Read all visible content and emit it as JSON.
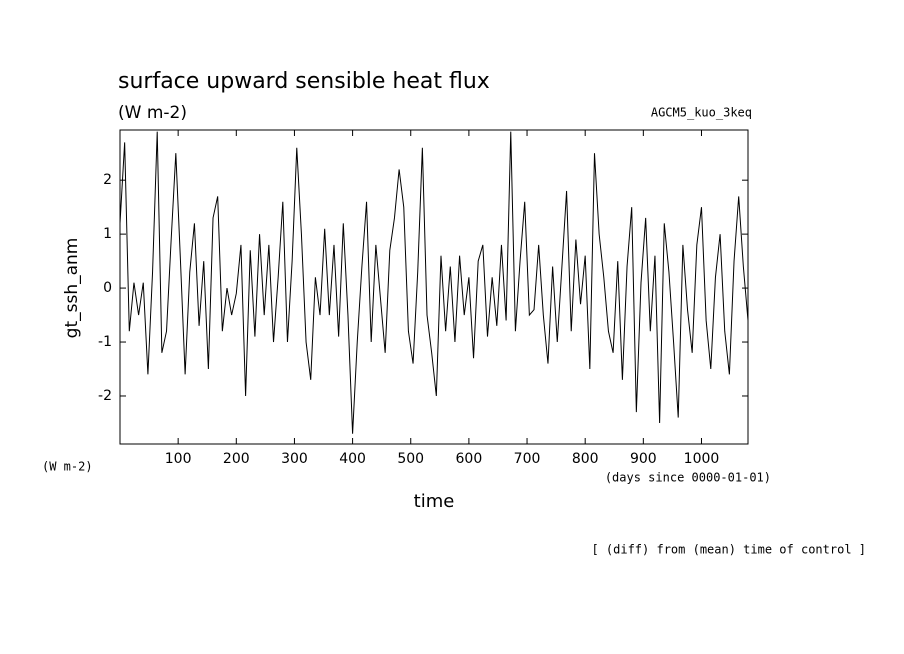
{
  "chart_data": {
    "type": "line",
    "title": "surface upward sensible heat flux",
    "subtitle": "(W m-2)",
    "run_label": "AGCM5_kuo_3keq",
    "ylabel": "gt_ssh_anm",
    "yunit": "(W m-2)",
    "xunit": "(days since 0000-01-01)",
    "xlabel": "time",
    "footnote": "[ (diff) from (mean) time of control ]",
    "xlim": [
      0,
      1080
    ],
    "ylim": [
      -2.89,
      2.93
    ],
    "xticks": [
      100,
      200,
      300,
      400,
      500,
      600,
      700,
      800,
      900,
      1000
    ],
    "yticks": [
      -2,
      -1,
      0,
      1,
      2
    ],
    "series": [
      {
        "name": "gt_ssh_anm",
        "color": "#000000",
        "x": [
          0,
          8,
          16,
          24,
          32,
          40,
          48,
          56,
          64,
          72,
          80,
          88,
          96,
          104,
          112,
          120,
          128,
          136,
          144,
          152,
          160,
          168,
          176,
          184,
          192,
          200,
          208,
          216,
          224,
          232,
          240,
          248,
          256,
          264,
          272,
          280,
          288,
          296,
          304,
          312,
          320,
          328,
          336,
          344,
          352,
          360,
          368,
          376,
          384,
          392,
          400,
          408,
          416,
          424,
          432,
          440,
          448,
          456,
          464,
          472,
          480,
          488,
          496,
          504,
          512,
          520,
          528,
          536,
          544,
          552,
          560,
          568,
          576,
          584,
          592,
          600,
          608,
          616,
          624,
          632,
          640,
          648,
          656,
          664,
          672,
          680,
          688,
          696,
          704,
          712,
          720,
          728,
          736,
          744,
          752,
          760,
          768,
          776,
          784,
          792,
          800,
          808,
          816,
          824,
          832,
          840,
          848,
          856,
          864,
          872,
          880,
          888,
          896,
          904,
          912,
          920,
          928,
          936,
          944,
          952,
          960,
          968,
          976,
          984,
          992,
          1000,
          1008,
          1016,
          1024,
          1032,
          1040,
          1048,
          1056,
          1064,
          1072,
          1080
        ],
        "values": [
          1.2,
          2.7,
          -0.8,
          0.1,
          -0.5,
          0.1,
          -1.6,
          0.3,
          2.9,
          -1.2,
          -0.8,
          0.9,
          2.5,
          0.5,
          -1.6,
          0.3,
          1.2,
          -0.7,
          0.5,
          -1.5,
          1.3,
          1.7,
          -0.8,
          0.0,
          -0.5,
          -0.1,
          0.8,
          -2.0,
          0.7,
          -0.9,
          1.0,
          -0.5,
          0.8,
          -1.0,
          0.2,
          1.6,
          -1.0,
          0.5,
          2.6,
          1.0,
          -1.0,
          -1.7,
          0.2,
          -0.5,
          1.1,
          -0.5,
          0.8,
          -0.9,
          1.2,
          -0.5,
          -2.7,
          -1.0,
          0.4,
          1.6,
          -1.0,
          0.8,
          -0.2,
          -1.2,
          0.7,
          1.3,
          2.2,
          1.5,
          -0.8,
          -1.4,
          0.3,
          2.6,
          -0.5,
          -1.2,
          -2.0,
          0.6,
          -0.8,
          0.4,
          -1.0,
          0.6,
          -0.5,
          0.2,
          -1.3,
          0.5,
          0.8,
          -0.9,
          0.2,
          -0.7,
          0.8,
          -0.6,
          2.9,
          -0.8,
          0.5,
          1.6,
          -0.5,
          -0.4,
          0.8,
          -0.5,
          -1.4,
          0.4,
          -1.0,
          0.4,
          1.8,
          -0.8,
          0.9,
          -0.3,
          0.6,
          -1.5,
          2.5,
          1.0,
          0.2,
          -0.8,
          -1.2,
          0.5,
          -1.7,
          0.4,
          1.5,
          -2.3,
          0.1,
          1.3,
          -0.8,
          0.6,
          -2.5,
          1.2,
          0.3,
          -1.0,
          -2.4,
          0.8,
          -0.4,
          -1.2,
          0.8,
          1.5,
          -0.6,
          -1.5,
          0.2,
          1.0,
          -0.8,
          -1.6,
          0.5,
          1.7,
          0.4,
          -0.6
        ]
      }
    ]
  }
}
